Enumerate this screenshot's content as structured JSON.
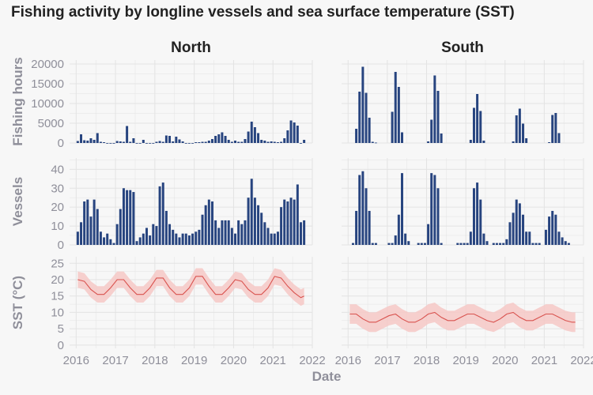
{
  "title": "Fishing activity by longline vessels and sea surface temperature (SST)",
  "chart_data": {
    "type": "bar",
    "title": "Fishing activity by longline vessels and sea surface temperature (SST)",
    "xlabel": "Date",
    "facets": [
      "North",
      "South"
    ],
    "x_ticks": [
      "2016",
      "2017",
      "2018",
      "2019",
      "2020",
      "2021",
      "2022"
    ],
    "xlim": [
      "2015-11-01",
      "2022-01-01"
    ],
    "grid": true,
    "colors": {
      "bar": "#27447f",
      "sst_line": "#d9534f",
      "sst_band": "#f6c8c6",
      "panel_bg": "#f7f7f7",
      "grid": "#e3e3e3"
    },
    "rows": [
      {
        "ylabel": "Fishing hours",
        "ylim": [
          0,
          21000
        ],
        "y_ticks": [
          "0",
          "5000",
          "10000",
          "15000",
          "20000"
        ],
        "series": [
          {
            "facet": "North",
            "type": "bar",
            "x": [
              "2016-01",
              "2016-02",
              "2016-03",
              "2016-04",
              "2016-05",
              "2016-06",
              "2016-07",
              "2016-08",
              "2016-09",
              "2016-10",
              "2016-11",
              "2016-12",
              "2017-01",
              "2017-02",
              "2017-03",
              "2017-04",
              "2017-05",
              "2017-06",
              "2017-07",
              "2017-08",
              "2017-09",
              "2017-10",
              "2017-11",
              "2017-12",
              "2018-01",
              "2018-02",
              "2018-03",
              "2018-04",
              "2018-05",
              "2018-06",
              "2018-07",
              "2018-08",
              "2018-09",
              "2018-10",
              "2018-11",
              "2018-12",
              "2019-01",
              "2019-02",
              "2019-03",
              "2019-04",
              "2019-05",
              "2019-06",
              "2019-07",
              "2019-08",
              "2019-09",
              "2019-10",
              "2019-11",
              "2019-12",
              "2020-01",
              "2020-02",
              "2020-03",
              "2020-04",
              "2020-05",
              "2020-06",
              "2020-07",
              "2020-08",
              "2020-09",
              "2020-10",
              "2020-11",
              "2020-12",
              "2021-01",
              "2021-02",
              "2021-03",
              "2021-04",
              "2021-05",
              "2021-06",
              "2021-07",
              "2021-08",
              "2021-09",
              "2021-10"
            ],
            "values": [
              500,
              2200,
              700,
              600,
              1200,
              800,
              2500,
              300,
              200,
              0,
              0,
              0,
              500,
              400,
              300,
              4300,
              300,
              1200,
              0,
              0,
              800,
              0,
              0,
              0,
              300,
              500,
              300,
              1900,
              1800,
              400,
              1600,
              900,
              400,
              0,
              0,
              0,
              200,
              200,
              300,
              300,
              600,
              1000,
              1800,
              2200,
              2700,
              1800,
              800,
              300,
              600,
              300,
              300,
              1000,
              2900,
              5400,
              4000,
              2500,
              800,
              600,
              300,
              400,
              300,
              200,
              300,
              1200,
              3200,
              5700,
              5200,
              4400,
              0,
              800
            ]
          },
          {
            "facet": "South",
            "type": "bar",
            "x": [
              "2016-03",
              "2016-04",
              "2016-05",
              "2016-06",
              "2016-07",
              "2016-08",
              "2016-09",
              "2017-02",
              "2017-03",
              "2017-04",
              "2017-05",
              "2018-01",
              "2018-02",
              "2018-03",
              "2018-04",
              "2018-05",
              "2019-02",
              "2019-03",
              "2019-04",
              "2019-05",
              "2019-06",
              "2020-03",
              "2020-04",
              "2020-05",
              "2020-06",
              "2020-07",
              "2021-02",
              "2021-03",
              "2021-04",
              "2021-05"
            ],
            "values": [
              3600,
              13000,
              19300,
              12700,
              6400,
              300,
              100,
              7900,
              18000,
              14200,
              2700,
              400,
              5900,
              17100,
              13200,
              2400,
              800,
              8900,
              12400,
              8100,
              600,
              400,
              7000,
              8700,
              4900,
              1200,
              200,
              7100,
              7600,
              2500
            ]
          }
        ]
      },
      {
        "ylabel": "Vessels",
        "ylim": [
          0,
          46
        ],
        "y_ticks": [
          "0",
          "10",
          "20",
          "30",
          "40"
        ],
        "series": [
          {
            "facet": "North",
            "type": "bar",
            "x": [
              "2016-01",
              "2016-02",
              "2016-03",
              "2016-04",
              "2016-05",
              "2016-06",
              "2016-07",
              "2016-08",
              "2016-09",
              "2016-10",
              "2016-11",
              "2016-12",
              "2017-01",
              "2017-02",
              "2017-03",
              "2017-04",
              "2017-05",
              "2017-06",
              "2017-07",
              "2017-08",
              "2017-09",
              "2017-10",
              "2017-11",
              "2017-12",
              "2018-01",
              "2018-02",
              "2018-03",
              "2018-04",
              "2018-05",
              "2018-06",
              "2018-07",
              "2018-08",
              "2018-09",
              "2018-10",
              "2018-11",
              "2018-12",
              "2019-01",
              "2019-02",
              "2019-03",
              "2019-04",
              "2019-05",
              "2019-06",
              "2019-07",
              "2019-08",
              "2019-09",
              "2019-10",
              "2019-11",
              "2019-12",
              "2020-01",
              "2020-02",
              "2020-03",
              "2020-04",
              "2020-05",
              "2020-06",
              "2020-07",
              "2020-08",
              "2020-09",
              "2020-10",
              "2020-11",
              "2020-12",
              "2021-01",
              "2021-02",
              "2021-03",
              "2021-04",
              "2021-05",
              "2021-06",
              "2021-07",
              "2021-08",
              "2021-09",
              "2021-10"
            ],
            "values": [
              7,
              12,
              23,
              24,
              15,
              24,
              19,
              7,
              4,
              6,
              3,
              1,
              11,
              19,
              30,
              29,
              29,
              28,
              2,
              4,
              6,
              9,
              5,
              11,
              10,
              31,
              33,
              18,
              11,
              8,
              6,
              4,
              6,
              6,
              5,
              6,
              7,
              8,
              16,
              21,
              24,
              23,
              13,
              9,
              13,
              13,
              13,
              9,
              6,
              13,
              11,
              13,
              25,
              35,
              25,
              21,
              17,
              12,
              9,
              6,
              6,
              7,
              20,
              24,
              23,
              25,
              24,
              32,
              12,
              13
            ]
          },
          {
            "facet": "South",
            "type": "bar",
            "x": [
              "2016-02",
              "2016-03",
              "2016-04",
              "2016-05",
              "2016-06",
              "2016-07",
              "2016-08",
              "2016-09",
              "2017-01",
              "2017-02",
              "2017-03",
              "2017-04",
              "2017-05",
              "2017-06",
              "2017-07",
              "2017-10",
              "2017-11",
              "2017-12",
              "2018-01",
              "2018-02",
              "2018-03",
              "2018-04",
              "2018-05",
              "2018-10",
              "2018-11",
              "2018-12",
              "2019-01",
              "2019-02",
              "2019-03",
              "2019-04",
              "2019-05",
              "2019-06",
              "2019-07",
              "2019-09",
              "2019-10",
              "2019-11",
              "2019-12",
              "2020-01",
              "2020-02",
              "2020-03",
              "2020-04",
              "2020-05",
              "2020-06",
              "2020-07",
              "2020-08",
              "2020-09",
              "2020-10",
              "2020-11",
              "2021-01",
              "2021-02",
              "2021-03",
              "2021-04",
              "2021-05",
              "2021-06",
              "2021-07",
              "2021-08"
            ],
            "values": [
              1,
              18,
              37,
              39,
              30,
              18,
              1,
              1,
              1,
              1,
              5,
              16,
              38,
              6,
              2,
              1,
              1,
              1,
              11,
              38,
              37,
              30,
              1,
              1,
              1,
              1,
              1,
              7,
              30,
              33,
              24,
              6,
              2,
              1,
              1,
              1,
              1,
              3,
              12,
              17,
              24,
              22,
              16,
              7,
              7,
              1,
              1,
              1,
              8,
              15,
              18,
              16,
              7,
              4,
              2,
              1
            ]
          }
        ]
      },
      {
        "ylabel": "SST (°C)",
        "ylim": [
          -1,
          27
        ],
        "y_ticks": [
          "0",
          "5",
          "10",
          "15",
          "20",
          "25"
        ],
        "series": [
          {
            "facet": "North",
            "type": "line",
            "x": [
              "2016-01",
              "2016-03",
              "2016-05",
              "2016-07",
              "2016-09",
              "2016-11",
              "2017-01",
              "2017-03",
              "2017-05",
              "2017-07",
              "2017-09",
              "2017-11",
              "2018-01",
              "2018-03",
              "2018-05",
              "2018-07",
              "2018-09",
              "2018-11",
              "2019-01",
              "2019-03",
              "2019-05",
              "2019-07",
              "2019-09",
              "2019-11",
              "2020-01",
              "2020-03",
              "2020-05",
              "2020-07",
              "2020-09",
              "2020-11",
              "2021-01",
              "2021-03",
              "2021-05",
              "2021-07",
              "2021-09",
              "2021-10"
            ],
            "values": [
              20,
              19.5,
              17,
              15.5,
              15.5,
              17.5,
              20,
              20,
              17.5,
              15.5,
              15.5,
              17.5,
              20.5,
              20.5,
              17.5,
              15.5,
              15.5,
              17.5,
              21,
              21,
              18,
              15.5,
              15.5,
              17.5,
              20,
              19.5,
              17,
              15.5,
              15.5,
              17.5,
              21,
              20.5,
              18,
              16,
              14.5,
              15
            ],
            "band_halfwidth": 2.5
          },
          {
            "facet": "South",
            "type": "line",
            "x": [
              "2016-01",
              "2016-03",
              "2016-05",
              "2016-07",
              "2016-09",
              "2016-11",
              "2017-01",
              "2017-03",
              "2017-05",
              "2017-07",
              "2017-09",
              "2017-11",
              "2018-01",
              "2018-03",
              "2018-05",
              "2018-07",
              "2018-09",
              "2018-11",
              "2019-01",
              "2019-03",
              "2019-05",
              "2019-07",
              "2019-09",
              "2019-11",
              "2020-01",
              "2020-03",
              "2020-05",
              "2020-07",
              "2020-09",
              "2020-11",
              "2021-01",
              "2021-03",
              "2021-05",
              "2021-07",
              "2021-09",
              "2021-10"
            ],
            "values": [
              9.5,
              9.5,
              8,
              7,
              7,
              8,
              9,
              9.5,
              8,
              7,
              7,
              8,
              9.5,
              10,
              8.5,
              7.5,
              7.5,
              8.5,
              9.5,
              9.5,
              8.5,
              7.5,
              7,
              8,
              9.5,
              10,
              8.5,
              7.5,
              7.5,
              8.5,
              9.5,
              9.5,
              8.5,
              7.5,
              7,
              7
            ],
            "band_halfwidth": 3
          }
        ]
      }
    ]
  }
}
